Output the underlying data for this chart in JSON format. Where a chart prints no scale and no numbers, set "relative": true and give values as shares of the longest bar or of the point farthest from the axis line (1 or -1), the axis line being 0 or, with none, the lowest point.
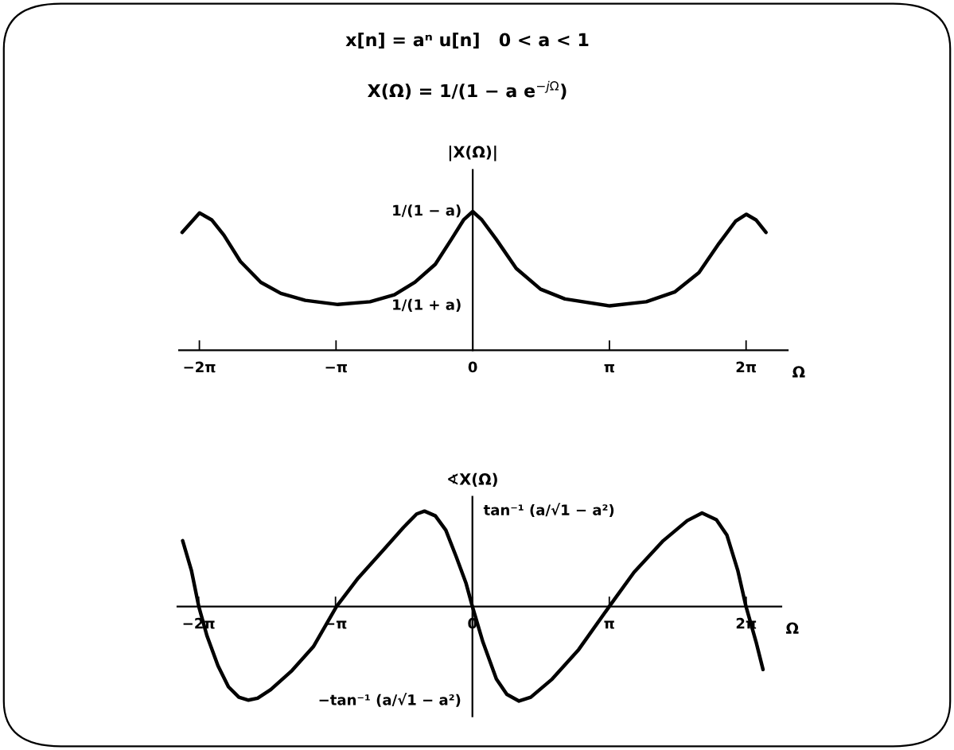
{
  "chart_data": [
    {
      "type": "line",
      "title": "x[n] = aⁿ u[n]   0 < a < 1",
      "subtitle": "X(Ω) = 1/(1 − a e$^{−jΩ}$)",
      "ylabel": "|X(Ω)|",
      "xlabel": "Ω",
      "relative": true,
      "xlim": [
        -6.75,
        7.24
      ],
      "xticks": [
        {
          "value": -6.283,
          "label": "−2π"
        },
        {
          "value": -3.142,
          "label": "−π"
        },
        0,
        {
          "value": 3.142,
          "label": "π"
        },
        {
          "value": 6.283,
          "label": "2π"
        }
      ],
      "series": [
        {
          "color": "#000000",
          "x": [
            -6.68,
            -6.28,
            -6.0,
            -5.72,
            -5.34,
            -4.87,
            -4.41,
            -3.85,
            -3.1,
            -2.36,
            -1.8,
            -1.33,
            -0.86,
            -0.49,
            -0.21,
            0,
            0.21,
            0.54,
            1.0,
            1.56,
            2.12,
            3.15,
            3.99,
            4.64,
            5.2,
            5.66,
            6.04,
            6.29,
            6.51,
            6.74
          ],
          "values": [
            0.85,
            0.99,
            0.94,
            0.83,
            0.64,
            0.49,
            0.41,
            0.36,
            0.33,
            0.35,
            0.4,
            0.49,
            0.62,
            0.8,
            0.94,
            1.0,
            0.94,
            0.8,
            0.59,
            0.44,
            0.37,
            0.32,
            0.35,
            0.42,
            0.56,
            0.77,
            0.93,
            0.98,
            0.94,
            0.85
          ]
        }
      ],
      "annotations": [
        "1/(1 − a)",
        "1/(1 + a)"
      ]
    },
    {
      "type": "line",
      "ylabel": "∢X(Ω)",
      "xlabel": "Ω",
      "relative": true,
      "xlim": [
        -6.77,
        7.09
      ],
      "xticks": [
        {
          "value": -6.283,
          "label": "−2π"
        },
        {
          "value": -3.142,
          "label": "−π"
        },
        0,
        {
          "value": 3.142,
          "label": "π"
        },
        {
          "value": 6.283,
          "label": "2π"
        }
      ],
      "series": [
        {
          "color": "#000000",
          "x": [
            -6.65,
            -6.45,
            -6.28,
            -6.09,
            -5.84,
            -5.6,
            -5.36,
            -5.14,
            -4.93,
            -4.63,
            -4.14,
            -3.65,
            -3.12,
            -2.62,
            -2.01,
            -1.58,
            -1.28,
            -1.1,
            -0.85,
            -0.61,
            -0.37,
            -0.15,
            0,
            0.24,
            0.55,
            0.79,
            1.07,
            1.34,
            1.83,
            2.44,
            3.14,
            3.71,
            4.38,
            4.93,
            5.27,
            5.6,
            5.84,
            6.09,
            6.28,
            6.51,
            6.67
          ],
          "values": [
            0.69,
            0.38,
            0,
            -0.31,
            -0.62,
            -0.84,
            -0.95,
            -0.98,
            -0.96,
            -0.87,
            -0.67,
            -0.42,
            0,
            0.3,
            0.61,
            0.83,
            0.97,
            1.0,
            0.95,
            0.8,
            0.52,
            0.25,
            0,
            -0.37,
            -0.76,
            -0.92,
            -0.99,
            -0.95,
            -0.76,
            -0.45,
            0,
            0.36,
            0.69,
            0.9,
            0.98,
            0.91,
            0.75,
            0.38,
            0,
            -0.37,
            -0.66
          ]
        }
      ],
      "annotations": [
        "tan⁻¹ (a/√1 − a²)",
        "−tan⁻¹ (a/√1 − a²)"
      ]
    }
  ]
}
